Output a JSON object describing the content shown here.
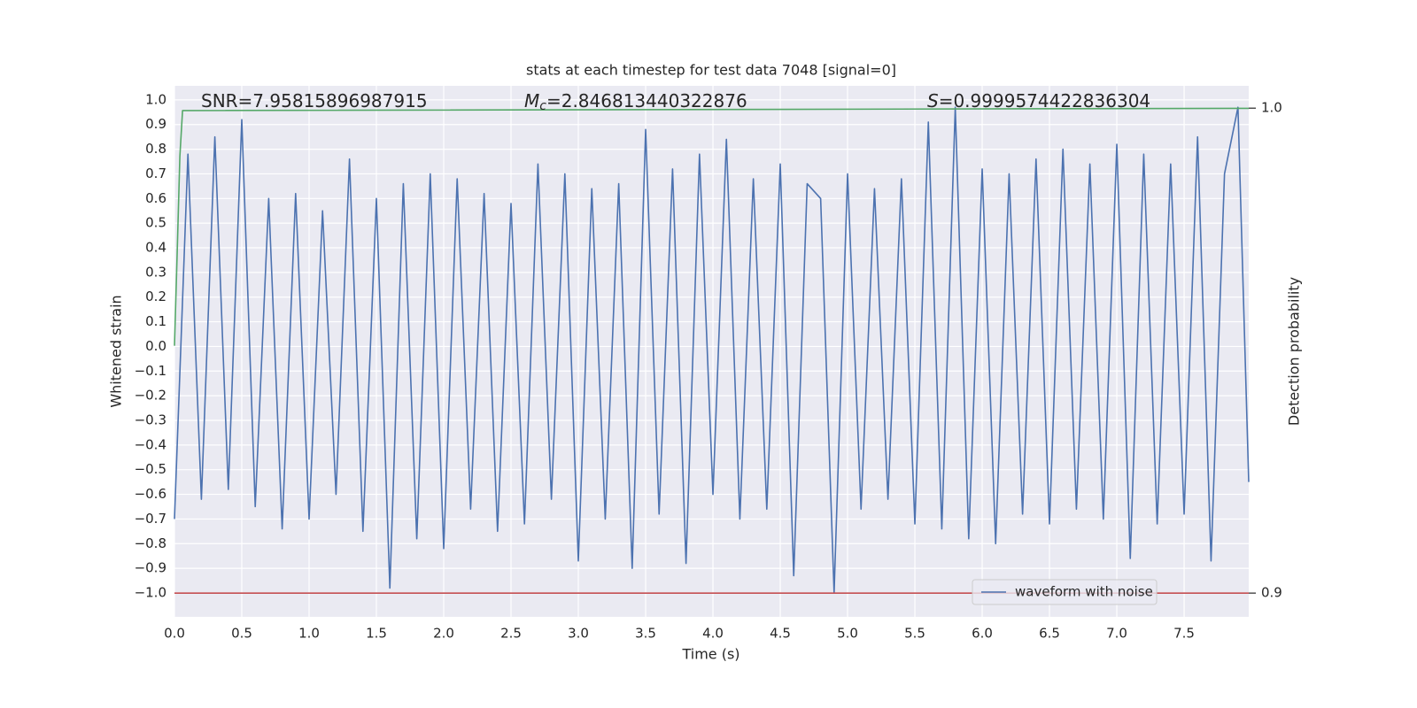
{
  "chart_data": {
    "type": "line",
    "title": "stats at each timestep for test data 7048 [signal=0]",
    "xlabel": "Time (s)",
    "ylabel": "Whitened strain",
    "y2label": "Detection probability",
    "annotations": [
      {
        "parts": [
          "SNR=7.95815896987915"
        ]
      },
      {
        "parts": [
          "M",
          "c",
          "=2.846813440322876"
        ]
      },
      {
        "parts": [
          "S",
          "=0.9999574422836304"
        ]
      }
    ],
    "xlim": [
      0,
      7.98
    ],
    "ylim": [
      -1.097,
      1.057
    ],
    "y2lim": [
      0.8951,
      1.0046
    ],
    "xticks": [
      {
        "value": 0,
        "label": "0.0"
      },
      {
        "value": 0.5,
        "label": "0.5"
      },
      {
        "value": 1,
        "label": "1.0"
      },
      {
        "value": 1.5,
        "label": "1.5"
      },
      {
        "value": 2,
        "label": "2.0"
      },
      {
        "value": 2.5,
        "label": "2.5"
      },
      {
        "value": 3,
        "label": "3.0"
      },
      {
        "value": 3.5,
        "label": "3.5"
      },
      {
        "value": 4,
        "label": "4.0"
      },
      {
        "value": 4.5,
        "label": "4.5"
      },
      {
        "value": 5,
        "label": "5.0"
      },
      {
        "value": 5.5,
        "label": "5.5"
      },
      {
        "value": 6,
        "label": "6.0"
      },
      {
        "value": 6.5,
        "label": "6.5"
      },
      {
        "value": 7,
        "label": "7.0"
      },
      {
        "value": 7.5,
        "label": "7.5"
      }
    ],
    "yticks": [
      {
        "value": -1,
        "label": "−1.0"
      },
      {
        "value": -0.9,
        "label": "−0.9"
      },
      {
        "value": -0.8,
        "label": "−0.8"
      },
      {
        "value": -0.7,
        "label": "−0.7"
      },
      {
        "value": -0.6,
        "label": "−0.6"
      },
      {
        "value": -0.5,
        "label": "−0.5"
      },
      {
        "value": -0.4,
        "label": "−0.4"
      },
      {
        "value": -0.3,
        "label": "−0.3"
      },
      {
        "value": -0.2,
        "label": "−0.2"
      },
      {
        "value": -0.1,
        "label": "−0.1"
      },
      {
        "value": 0,
        "label": "0.0"
      },
      {
        "value": 0.1,
        "label": "0.1"
      },
      {
        "value": 0.2,
        "label": "0.2"
      },
      {
        "value": 0.3,
        "label": "0.3"
      },
      {
        "value": 0.4,
        "label": "0.4"
      },
      {
        "value": 0.5,
        "label": "0.5"
      },
      {
        "value": 0.6,
        "label": "0.6"
      },
      {
        "value": 0.7,
        "label": "0.7"
      },
      {
        "value": 0.8,
        "label": "0.8"
      },
      {
        "value": 0.9,
        "label": "0.9"
      },
      {
        "value": 1,
        "label": "1.0"
      }
    ],
    "y2ticks": [
      {
        "value": 0.9,
        "label": "0.9"
      },
      {
        "value": 1,
        "label": "1.0"
      }
    ],
    "grid": true,
    "legend": "lower right",
    "background": "#eaeaf2",
    "series": [
      {
        "name": "waveform with noise",
        "color": "#4c72b0",
        "x": [
          0,
          0.1,
          0.2,
          0.3,
          0.4,
          0.5,
          0.6,
          0.7,
          0.8,
          0.9,
          1,
          1.1,
          1.2,
          1.3,
          1.4,
          1.5,
          1.6,
          1.7,
          1.8,
          1.9,
          2,
          2.1,
          2.2,
          2.3,
          2.4,
          2.5,
          2.6,
          2.7,
          2.8,
          2.9,
          3,
          3.1,
          3.2,
          3.3,
          3.4,
          3.5,
          3.6,
          3.7,
          3.8,
          3.9,
          4,
          4.1,
          4.2,
          4.3,
          4.4,
          4.5,
          4.6,
          4.7,
          4.8,
          4.9,
          5,
          5.1,
          5.2,
          5.3,
          5.4,
          5.5,
          5.6,
          5.7,
          5.8,
          5.9,
          6,
          6.1,
          6.2,
          6.3,
          6.4,
          6.5,
          6.6,
          6.7,
          6.8,
          6.9,
          7,
          7.1,
          7.2,
          7.3,
          7.4,
          7.5,
          7.6,
          7.7,
          7.8,
          7.9,
          7.98
        ],
        "values": [
          -0.7,
          0.78,
          -0.62,
          0.85,
          -0.58,
          0.92,
          -0.65,
          0.6,
          -0.74,
          0.62,
          -0.7,
          0.55,
          -0.6,
          0.76,
          -0.75,
          0.6,
          -0.98,
          0.66,
          -0.78,
          0.7,
          -0.82,
          0.68,
          -0.66,
          0.62,
          -0.75,
          0.58,
          -0.72,
          0.74,
          -0.62,
          0.7,
          -0.87,
          0.64,
          -0.7,
          0.66,
          -0.9,
          0.88,
          -0.68,
          0.72,
          -0.88,
          0.78,
          -0.6,
          0.84,
          -0.7,
          0.68,
          -0.66,
          0.74,
          -0.93,
          0.66,
          0.6,
          -1.0,
          0.7,
          -0.66,
          0.64,
          -0.62,
          0.68,
          -0.72,
          0.91,
          -0.74,
          0.97,
          -0.78,
          0.72,
          -0.8,
          0.7,
          -0.68,
          0.76,
          -0.72,
          0.8,
          -0.66,
          0.74,
          -0.7,
          0.82,
          -0.86,
          0.78,
          -0.72,
          0.74,
          -0.68,
          0.85,
          -0.87,
          0.7,
          0.97,
          -0.55
        ]
      },
      {
        "color": "#55a868",
        "axis": "y2",
        "x": [
          0,
          0.02,
          0.04,
          0.06,
          7.98
        ],
        "values": [
          0.951,
          0.97,
          0.99,
          0.9995,
          0.99996
        ]
      },
      {
        "color": "#c44e52",
        "axis": "y2",
        "x": [
          0,
          7.98
        ],
        "values": [
          0.9,
          0.9
        ]
      }
    ]
  }
}
